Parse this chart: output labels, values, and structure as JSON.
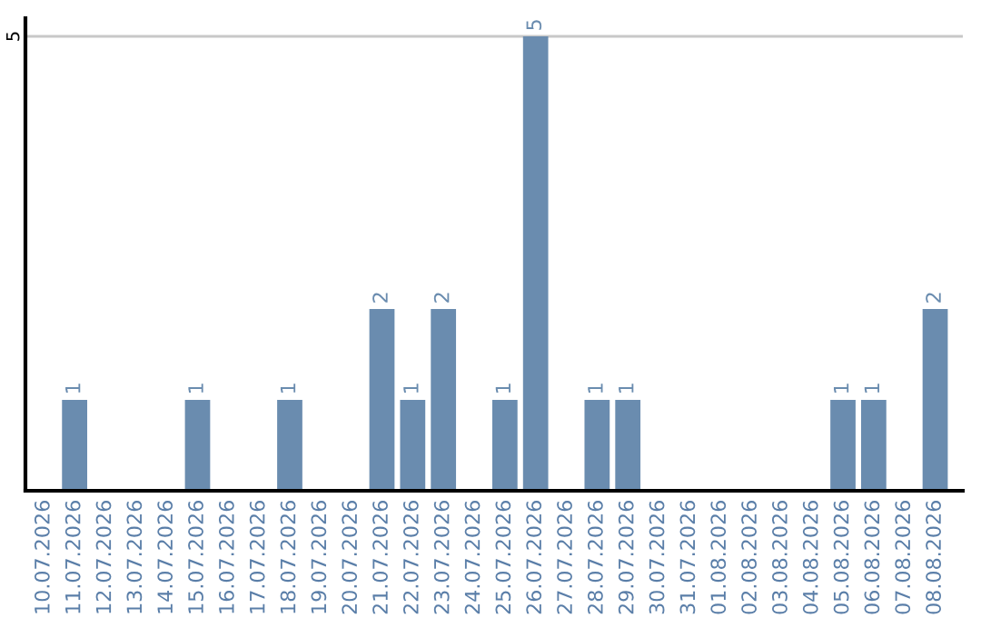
{
  "chart_data": {
    "type": "bar",
    "categories": [
      "10.07.2026",
      "11.07.2026",
      "12.07.2026",
      "13.07.2026",
      "14.07.2026",
      "15.07.2026",
      "16.07.2026",
      "17.07.2026",
      "18.07.2026",
      "19.07.2026",
      "20.07.2026",
      "21.07.2026",
      "22.07.2026",
      "23.07.2026",
      "24.07.2026",
      "25.07.2026",
      "26.07.2026",
      "27.07.2026",
      "28.07.2026",
      "29.07.2026",
      "30.07.2026",
      "31.07.2026",
      "01.08.2026",
      "02.08.2026",
      "03.08.2026",
      "04.08.2026",
      "05.08.2026",
      "06.08.2026",
      "07.08.2026",
      "08.08.2026"
    ],
    "values": [
      0,
      1,
      0,
      0,
      0,
      1,
      0,
      0,
      1,
      0,
      0,
      2,
      1,
      2,
      0,
      1,
      5,
      0,
      1,
      1,
      0,
      0,
      0,
      0,
      0,
      0,
      1,
      1,
      0,
      2
    ],
    "value_labels": [
      null,
      "1",
      null,
      null,
      null,
      "1",
      null,
      null,
      "1",
      null,
      null,
      "2",
      "1",
      "2",
      null,
      "1",
      "5",
      null,
      "1",
      "1",
      null,
      null,
      null,
      null,
      null,
      null,
      "1",
      "1",
      null,
      "2"
    ],
    "color": "#6a8caf",
    "ylim": [
      0,
      5.2
    ],
    "yticks": [
      5
    ],
    "grid": "y"
  }
}
